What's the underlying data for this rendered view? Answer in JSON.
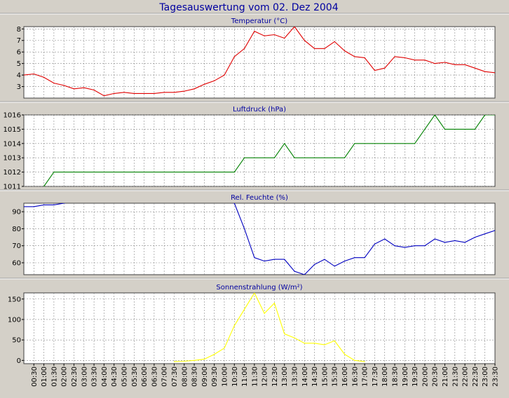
{
  "window_title": "Tagesauswertung vom 02. Dez 2004",
  "colors": {
    "background": "#d4d0c8",
    "plot_background": "#ffffff",
    "grid": "#888888",
    "title_blue": "#0000a0",
    "temperature": "#e00000",
    "pressure": "#008000",
    "humidity": "#0000c0",
    "radiation": "#ffff00"
  },
  "x_tick_labels": [
    "00:30",
    "01:00",
    "01:30",
    "02:00",
    "02:30",
    "03:00",
    "03:30",
    "04:00",
    "04:30",
    "05:00",
    "05:30",
    "06:00",
    "06:30",
    "07:00",
    "07:30",
    "08:00",
    "08:30",
    "09:00",
    "09:30",
    "10:00",
    "10:30",
    "11:00",
    "11:30",
    "12:00",
    "12:30",
    "13:00",
    "13:30",
    "14:00",
    "14:30",
    "15:00",
    "15:30",
    "16:00",
    "16:30",
    "17:00",
    "17:30",
    "18:00",
    "18:30",
    "19:00",
    "19:30",
    "20:00",
    "20:30",
    "21:00",
    "21:30",
    "22:00",
    "22:30",
    "23:00",
    "23:30"
  ],
  "chart_data": [
    {
      "type": "line",
      "title": "Temperatur (°C)",
      "ylim": [
        2,
        8.2
      ],
      "y_ticks": [
        3,
        4,
        5,
        6,
        7,
        8
      ],
      "x_range_hours": [
        0,
        23.5
      ],
      "grid": true,
      "series": [
        {
          "color": "#e00000",
          "x": [
            0,
            0.5,
            1,
            1.5,
            2,
            2.5,
            3,
            3.5,
            4,
            4.5,
            5,
            5.5,
            6,
            6.5,
            7,
            7.5,
            8,
            8.5,
            9,
            9.5,
            10,
            10.5,
            11,
            11.5,
            12,
            12.5,
            13,
            13.5,
            14,
            14.5,
            15,
            15.5,
            16,
            16.5,
            17,
            17.5,
            18,
            18.5,
            19,
            19.5,
            20,
            20.5,
            21,
            21.5,
            22,
            22.5,
            23,
            23.5
          ],
          "y": [
            4.0,
            4.1,
            3.8,
            3.3,
            3.1,
            2.8,
            2.9,
            2.7,
            2.2,
            2.4,
            2.5,
            2.4,
            2.4,
            2.4,
            2.5,
            2.5,
            2.6,
            2.8,
            3.2,
            3.5,
            4.0,
            5.6,
            6.3,
            7.8,
            7.4,
            7.5,
            7.2,
            8.2,
            7.0,
            6.3,
            6.3,
            6.9,
            6.1,
            5.6,
            5.5,
            4.4,
            4.6,
            5.6,
            5.5,
            5.3,
            5.3,
            5.0,
            5.1,
            4.9,
            4.9,
            4.6,
            4.3,
            4.2
          ]
        }
      ]
    },
    {
      "type": "line",
      "title": "Luftdruck (hPa)",
      "ylim": [
        1011,
        1016
      ],
      "y_ticks": [
        1011,
        1012,
        1013,
        1014,
        1015,
        1016
      ],
      "x_range_hours": [
        0,
        23.5
      ],
      "grid": true,
      "series": [
        {
          "color": "#008000",
          "x": [
            0,
            1,
            1.5,
            10.5,
            11,
            12.5,
            13,
            13.5,
            16,
            16.5,
            19.5,
            20,
            20.5,
            21,
            22.5,
            23,
            23.5
          ],
          "y": [
            1010.5,
            1011,
            1012,
            1012,
            1013,
            1013,
            1014,
            1013,
            1013,
            1014,
            1014,
            1015,
            1016,
            1015,
            1015,
            1016,
            1016
          ]
        }
      ]
    },
    {
      "type": "line",
      "title": "Rel. Feuchte (%)",
      "ylim": [
        53,
        95
      ],
      "y_ticks": [
        60,
        70,
        80,
        90
      ],
      "x_range_hours": [
        0,
        23.5
      ],
      "grid": true,
      "series": [
        {
          "color": "#0000c0",
          "x": [
            0,
            0.5,
            1,
            1.5,
            2,
            2.5,
            10,
            10.5,
            11,
            11.5,
            12,
            12.5,
            13,
            13.5,
            14,
            14.5,
            15,
            15.5,
            16,
            16.5,
            17,
            17.5,
            18,
            18.5,
            19,
            19.5,
            20,
            20.5,
            21,
            21.5,
            22,
            22.5,
            23,
            23.5
          ],
          "y": [
            93,
            93,
            94,
            94,
            95,
            96,
            96,
            95,
            80,
            63,
            61,
            62,
            62,
            55,
            53,
            59,
            62,
            58,
            61,
            63,
            63,
            71,
            74,
            70,
            69,
            70,
            70,
            74,
            72,
            73,
            72,
            75,
            77,
            79
          ]
        }
      ]
    },
    {
      "type": "line",
      "title": "Sonnenstrahlung (W/m²)",
      "ylim": [
        -8,
        165
      ],
      "y_ticks": [
        0,
        50,
        100,
        150
      ],
      "x_range_hours": [
        0,
        23.5
      ],
      "grid": true,
      "series": [
        {
          "color": "#ffff00",
          "x": [
            7.5,
            8,
            8.5,
            9,
            9.5,
            10,
            10.5,
            11,
            11.5,
            12,
            12.5,
            13,
            13.5,
            14,
            14.5,
            15,
            15.5,
            16,
            16.5,
            17
          ],
          "y": [
            -3,
            -2,
            0,
            3,
            15,
            30,
            85,
            125,
            165,
            115,
            140,
            65,
            55,
            42,
            42,
            38,
            48,
            15,
            0,
            -3
          ]
        }
      ]
    }
  ]
}
